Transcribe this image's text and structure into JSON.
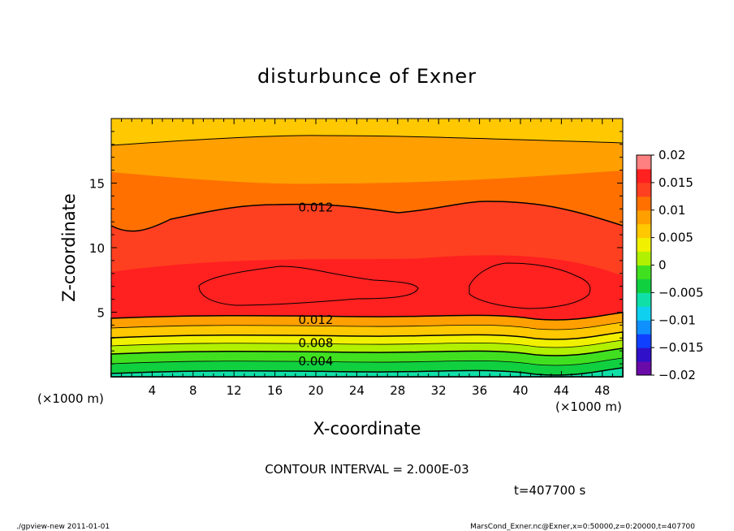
{
  "chart_data": {
    "type": "heatmap",
    "title": "disturbunce of Exner",
    "xlabel": "X-coordinate",
    "ylabel": "Z-coordinate",
    "x_unit": "(×1000 m)",
    "y_unit": "(×1000 m)",
    "xlim": [
      0,
      50
    ],
    "ylim": [
      0,
      20
    ],
    "x_ticks": [
      "4",
      "8",
      "12",
      "16",
      "20",
      "24",
      "28",
      "32",
      "36",
      "40",
      "44",
      "48"
    ],
    "y_ticks": [
      "5",
      "10",
      "15"
    ],
    "colorbar": {
      "labels": [
        "0.02",
        "0.015",
        "0.01",
        "0.005",
        "0",
        "−0.005",
        "−0.01",
        "−0.015",
        "−0.02"
      ],
      "range": [
        -0.02,
        0.02
      ],
      "step": 0.0025,
      "colors": [
        "#6a0aa8",
        "#3010c8",
        "#1040ff",
        "#1090ff",
        "#10d0f0",
        "#10e0a8",
        "#10d040",
        "#40e020",
        "#b0f000",
        "#f0f000",
        "#ffc800",
        "#ffa000",
        "#ff7000",
        "#ff4020",
        "#ff2020",
        "#ff8080"
      ]
    },
    "contour_interval": "CONTOUR INTERVAL = 2.000E-03",
    "contour_labels": [
      {
        "text": "0.012",
        "x": 20,
        "z": 13.1
      },
      {
        "text": "0.012",
        "x": 20,
        "z": 4.4
      },
      {
        "text": "0.008",
        "x": 20,
        "z": 2.6
      },
      {
        "text": "0.004",
        "x": 20,
        "z": 1.2
      }
    ],
    "time_label": "t=407700 s",
    "footer_left": "./gpview-new   2011-01-01",
    "footer_right": "MarsCond_Exner.nc@Exner,x=0:50000,z=0:20000,t=407700"
  }
}
